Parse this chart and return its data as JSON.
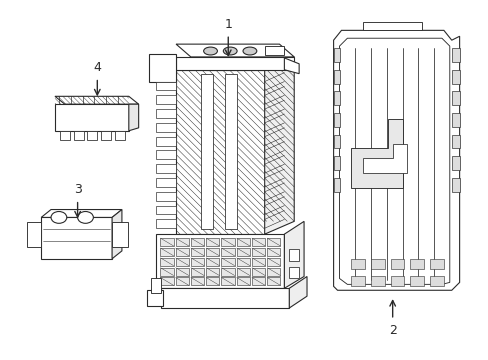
{
  "background_color": "#ffffff",
  "line_color": "#2a2a2a",
  "line_width": 0.8,
  "fig_width": 4.89,
  "fig_height": 3.6,
  "dpi": 100
}
